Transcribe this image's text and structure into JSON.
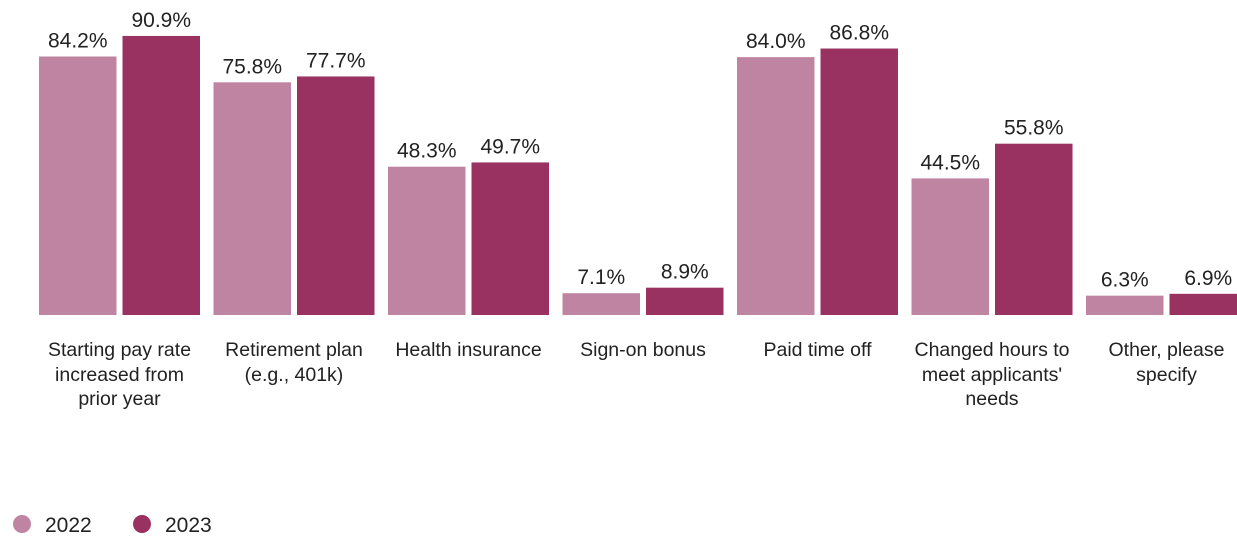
{
  "chart_data": {
    "type": "bar",
    "categories": [
      "Starting pay rate increased from prior year",
      "Retirement plan (e.g., 401k)",
      "Health insurance",
      "Sign-on bonus",
      "Paid time off",
      "Changed hours to meet applicants' needs",
      "Other, please specify"
    ],
    "series": [
      {
        "name": "2022",
        "color": "#c084a3",
        "values": [
          84.2,
          75.8,
          48.3,
          7.1,
          84.0,
          44.5,
          6.3
        ],
        "value_labels": [
          "84.2%",
          "75.8%",
          "48.3%",
          "7.1%",
          "84.0%",
          "44.5%",
          "6.3%"
        ]
      },
      {
        "name": "2023",
        "color": "#993161",
        "values": [
          90.9,
          77.7,
          49.7,
          8.9,
          86.8,
          55.8,
          6.9
        ],
        "value_labels": [
          "90.9%",
          "77.7%",
          "49.7%",
          "8.9%",
          "86.8%",
          "55.8%",
          "6.9%"
        ]
      }
    ],
    "legend": "bottom-left"
  }
}
